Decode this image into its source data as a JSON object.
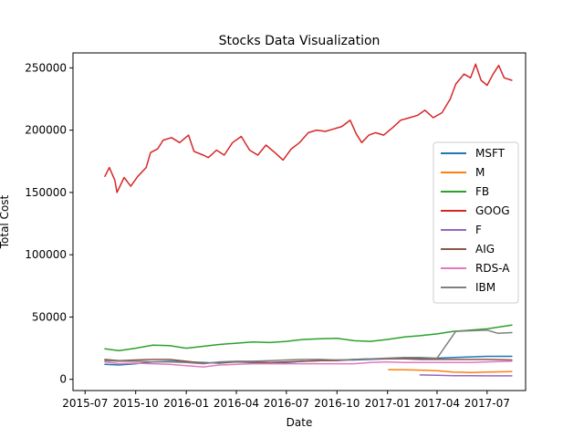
{
  "chart_data": {
    "type": "line",
    "title": "Stocks Data Visualization",
    "xlabel": "Date",
    "ylabel": "Total Cost",
    "x_ticks": [
      "2015-07",
      "2015-10",
      "2016-01",
      "2016-04",
      "2016-07",
      "2016-10",
      "2017-01",
      "2017-04",
      "2017-07"
    ],
    "y_ticks": [
      0,
      50000,
      100000,
      150000,
      200000,
      250000
    ],
    "y_tick_labels": [
      "0",
      "50000",
      "100000",
      "150000",
      "200000",
      "250000"
    ],
    "xlim": [
      "2015-06-09",
      "2017-09-09"
    ],
    "ylim": [
      -9000,
      262000
    ],
    "grid": false,
    "legend_position": "center-right",
    "series": [
      {
        "name": "MSFT",
        "color": "#1f77b4",
        "points": [
          [
            "2015-08-06",
            12000
          ],
          [
            "2015-09-01",
            11500
          ],
          [
            "2015-10-01",
            12500
          ],
          [
            "2015-11-01",
            14000
          ],
          [
            "2015-12-01",
            14500
          ],
          [
            "2016-01-01",
            14000
          ],
          [
            "2016-02-01",
            13500
          ],
          [
            "2016-03-01",
            13000
          ],
          [
            "2016-04-01",
            14000
          ],
          [
            "2016-05-01",
            13500
          ],
          [
            "2016-06-01",
            13000
          ],
          [
            "2016-07-01",
            13500
          ],
          [
            "2016-08-01",
            14500
          ],
          [
            "2016-09-01",
            15000
          ],
          [
            "2016-10-01",
            15500
          ],
          [
            "2016-11-01",
            15500
          ],
          [
            "2016-12-01",
            16000
          ],
          [
            "2017-01-01",
            16500
          ],
          [
            "2017-02-01",
            16500
          ],
          [
            "2017-03-01",
            16500
          ],
          [
            "2017-04-01",
            17000
          ],
          [
            "2017-05-01",
            17500
          ],
          [
            "2017-06-01",
            18000
          ],
          [
            "2017-07-01",
            18500
          ],
          [
            "2017-08-15",
            18500
          ]
        ]
      },
      {
        "name": "M",
        "color": "#ff7f0e",
        "points": [
          [
            "2017-01-03",
            7800
          ],
          [
            "2017-02-01",
            7600
          ],
          [
            "2017-03-01",
            7400
          ],
          [
            "2017-04-01",
            7000
          ],
          [
            "2017-05-01",
            5800
          ],
          [
            "2017-06-01",
            5500
          ],
          [
            "2017-07-01",
            5800
          ],
          [
            "2017-08-15",
            6200
          ]
        ]
      },
      {
        "name": "FB",
        "color": "#2ca02c",
        "points": [
          [
            "2015-08-06",
            24500
          ],
          [
            "2015-09-01",
            23000
          ],
          [
            "2015-10-01",
            25000
          ],
          [
            "2015-11-01",
            27500
          ],
          [
            "2015-12-01",
            27000
          ],
          [
            "2016-01-01",
            25000
          ],
          [
            "2016-02-01",
            26500
          ],
          [
            "2016-03-01",
            28000
          ],
          [
            "2016-04-01",
            29000
          ],
          [
            "2016-05-01",
            30000
          ],
          [
            "2016-06-01",
            29500
          ],
          [
            "2016-07-01",
            30500
          ],
          [
            "2016-08-01",
            32000
          ],
          [
            "2016-09-01",
            32500
          ],
          [
            "2016-10-01",
            33000
          ],
          [
            "2016-11-01",
            31000
          ],
          [
            "2016-12-01",
            30500
          ],
          [
            "2017-01-01",
            32000
          ],
          [
            "2017-02-01",
            34000
          ],
          [
            "2017-03-01",
            35000
          ],
          [
            "2017-04-01",
            36500
          ],
          [
            "2017-05-01",
            38500
          ],
          [
            "2017-06-01",
            39500
          ],
          [
            "2017-07-01",
            40500
          ],
          [
            "2017-08-15",
            43500
          ]
        ]
      },
      {
        "name": "GOOG",
        "color": "#d62728",
        "points": [
          [
            "2015-08-06",
            163000
          ],
          [
            "2015-08-14",
            170000
          ],
          [
            "2015-08-24",
            160000
          ],
          [
            "2015-08-28",
            150000
          ],
          [
            "2015-09-10",
            162000
          ],
          [
            "2015-09-22",
            155000
          ],
          [
            "2015-10-05",
            163000
          ],
          [
            "2015-10-20",
            170000
          ],
          [
            "2015-10-28",
            182000
          ],
          [
            "2015-11-10",
            185000
          ],
          [
            "2015-11-20",
            192000
          ],
          [
            "2015-12-05",
            194000
          ],
          [
            "2015-12-20",
            190000
          ],
          [
            "2016-01-05",
            196000
          ],
          [
            "2016-01-15",
            183000
          ],
          [
            "2016-02-01",
            180000
          ],
          [
            "2016-02-10",
            178000
          ],
          [
            "2016-02-25",
            184000
          ],
          [
            "2016-03-10",
            180000
          ],
          [
            "2016-03-25",
            190000
          ],
          [
            "2016-04-10",
            195000
          ],
          [
            "2016-04-25",
            184000
          ],
          [
            "2016-05-10",
            180000
          ],
          [
            "2016-05-25",
            188000
          ],
          [
            "2016-06-10",
            182000
          ],
          [
            "2016-06-25",
            176000
          ],
          [
            "2016-07-10",
            185000
          ],
          [
            "2016-07-25",
            190000
          ],
          [
            "2016-08-10",
            198000
          ],
          [
            "2016-08-25",
            200000
          ],
          [
            "2016-09-10",
            199000
          ],
          [
            "2016-09-25",
            201000
          ],
          [
            "2016-10-10",
            203000
          ],
          [
            "2016-10-25",
            208000
          ],
          [
            "2016-11-05",
            197000
          ],
          [
            "2016-11-15",
            190000
          ],
          [
            "2016-11-28",
            196000
          ],
          [
            "2016-12-10",
            198000
          ],
          [
            "2016-12-25",
            196000
          ],
          [
            "2017-01-10",
            202000
          ],
          [
            "2017-01-25",
            208000
          ],
          [
            "2017-02-10",
            210000
          ],
          [
            "2017-02-25",
            212000
          ],
          [
            "2017-03-10",
            216000
          ],
          [
            "2017-03-25",
            210000
          ],
          [
            "2017-04-10",
            214000
          ],
          [
            "2017-04-25",
            225000
          ],
          [
            "2017-05-05",
            237000
          ],
          [
            "2017-05-20",
            245000
          ],
          [
            "2017-06-01",
            242000
          ],
          [
            "2017-06-10",
            253000
          ],
          [
            "2017-06-20",
            240000
          ],
          [
            "2017-07-01",
            236000
          ],
          [
            "2017-07-12",
            245000
          ],
          [
            "2017-07-22",
            252000
          ],
          [
            "2017-08-01",
            242000
          ],
          [
            "2017-08-15",
            240000
          ]
        ]
      },
      {
        "name": "F",
        "color": "#9467bd",
        "points": [
          [
            "2017-03-01",
            3500
          ],
          [
            "2017-04-01",
            3300
          ],
          [
            "2017-05-01",
            2900
          ],
          [
            "2017-06-01",
            2900
          ],
          [
            "2017-07-01",
            2800
          ],
          [
            "2017-08-15",
            2800
          ]
        ]
      },
      {
        "name": "AIG",
        "color": "#8c564b",
        "points": [
          [
            "2015-08-06",
            16000
          ],
          [
            "2015-09-01",
            15000
          ],
          [
            "2015-10-01",
            15500
          ],
          [
            "2015-11-01",
            16000
          ],
          [
            "2015-12-01",
            16000
          ],
          [
            "2016-01-01",
            14500
          ],
          [
            "2016-02-01",
            13000
          ],
          [
            "2016-03-01",
            13500
          ],
          [
            "2016-04-01",
            14000
          ],
          [
            "2016-05-01",
            14000
          ],
          [
            "2016-06-01",
            13500
          ],
          [
            "2016-07-01",
            14000
          ],
          [
            "2016-08-01",
            14500
          ],
          [
            "2016-09-01",
            15000
          ],
          [
            "2016-10-01",
            15000
          ],
          [
            "2016-11-01",
            16000
          ],
          [
            "2016-12-01",
            16500
          ],
          [
            "2017-01-01",
            16500
          ],
          [
            "2017-02-01",
            16500
          ],
          [
            "2017-03-01",
            16000
          ],
          [
            "2017-04-01",
            16000
          ],
          [
            "2017-05-01",
            16000
          ],
          [
            "2017-06-01",
            16000
          ],
          [
            "2017-07-01",
            16000
          ],
          [
            "2017-08-15",
            15500
          ]
        ]
      },
      {
        "name": "RDS-A",
        "color": "#e377c2",
        "points": [
          [
            "2015-08-06",
            14000
          ],
          [
            "2015-09-01",
            12500
          ],
          [
            "2015-10-01",
            13000
          ],
          [
            "2015-11-01",
            12500
          ],
          [
            "2015-12-01",
            12000
          ],
          [
            "2016-01-01",
            11000
          ],
          [
            "2016-02-01",
            10000
          ],
          [
            "2016-03-01",
            11500
          ],
          [
            "2016-04-01",
            12000
          ],
          [
            "2016-05-01",
            12500
          ],
          [
            "2016-06-01",
            12500
          ],
          [
            "2016-07-01",
            12500
          ],
          [
            "2016-08-01",
            12500
          ],
          [
            "2016-09-01",
            12500
          ],
          [
            "2016-10-01",
            12500
          ],
          [
            "2016-11-01",
            12500
          ],
          [
            "2016-12-01",
            13500
          ],
          [
            "2017-01-01",
            14000
          ],
          [
            "2017-02-01",
            13500
          ],
          [
            "2017-03-01",
            13500
          ],
          [
            "2017-04-01",
            13500
          ],
          [
            "2017-05-01",
            13500
          ],
          [
            "2017-06-01",
            13500
          ],
          [
            "2017-07-01",
            14000
          ],
          [
            "2017-08-15",
            14500
          ]
        ]
      },
      {
        "name": "IBM",
        "color": "#7f7f7f",
        "points": [
          [
            "2015-08-06",
            15000
          ],
          [
            "2015-09-01",
            14500
          ],
          [
            "2015-10-01",
            14500
          ],
          [
            "2015-11-01",
            14000
          ],
          [
            "2015-12-01",
            14000
          ],
          [
            "2016-01-01",
            13500
          ],
          [
            "2016-02-01",
            12500
          ],
          [
            "2016-03-01",
            14000
          ],
          [
            "2016-04-01",
            14500
          ],
          [
            "2016-05-01",
            14500
          ],
          [
            "2016-06-01",
            15000
          ],
          [
            "2016-07-01",
            15500
          ],
          [
            "2016-08-01",
            16000
          ],
          [
            "2016-09-01",
            16000
          ],
          [
            "2016-10-01",
            15500
          ],
          [
            "2016-11-01",
            16000
          ],
          [
            "2016-12-01",
            16500
          ],
          [
            "2017-01-01",
            17000
          ],
          [
            "2017-02-01",
            17500
          ],
          [
            "2017-03-01",
            17500
          ],
          [
            "2017-04-01",
            17000
          ],
          [
            "2017-05-05",
            38500
          ],
          [
            "2017-06-01",
            39000
          ],
          [
            "2017-07-01",
            39500
          ],
          [
            "2017-07-20",
            37000
          ],
          [
            "2017-08-15",
            37500
          ]
        ]
      }
    ]
  }
}
